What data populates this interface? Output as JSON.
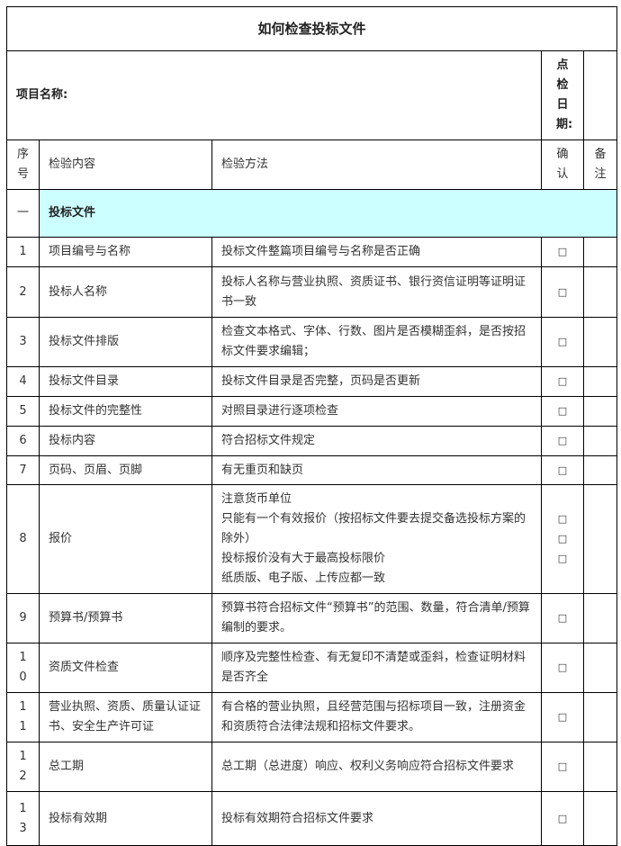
{
  "title": "如何检查投标文件",
  "project_label": "项目名称:",
  "date_label": "点检日期:",
  "headers": {
    "seq": "序号",
    "content": "检验内容",
    "method": "检验方法",
    "confirm": "确认",
    "remark": "备注"
  },
  "section": {
    "seq": "一",
    "name": "投标文件",
    "color": "#ccffff"
  },
  "checkbox_glyph": "□",
  "rows": [
    {
      "seq": "1",
      "content": "项目编号与名称",
      "method": [
        "投标文件整篇项目编号与名称是否正确"
      ],
      "checks": 1
    },
    {
      "seq": "2",
      "content": "投标人名称",
      "method": [
        "投标人名称与营业执照、资质证书、银行资信证明等证明证书一致"
      ],
      "checks": 1
    },
    {
      "seq": "3",
      "content": "投标文件排版",
      "method": [
        "检查文本格式、字体、行数、图片是否模糊歪斜，是否按招标文件要求编辑；"
      ],
      "checks": 1
    },
    {
      "seq": "4",
      "content": "投标文件目录",
      "method": [
        "投标文件目录是否完整，页码是否更新"
      ],
      "checks": 1
    },
    {
      "seq": "5",
      "content": "投标文件的完整性",
      "method": [
        "对照目录进行逐项检查"
      ],
      "checks": 1
    },
    {
      "seq": "6",
      "content": "投标内容",
      "method": [
        "符合招标文件规定"
      ],
      "checks": 1
    },
    {
      "seq": "7",
      "content": "页码、页眉、页脚",
      "method": [
        "有无重页和缺页"
      ],
      "checks": 1
    },
    {
      "seq": "8",
      "content": "报价",
      "method": [
        "注意货币单位",
        "只能有一个有效报价（按招标文件要去提交备选投标方案的除外）",
        "投标报价没有大于最高投标限价",
        "纸质版、电子版、上传应都一致"
      ],
      "checks": 3
    },
    {
      "seq": "9",
      "content": "预算书/预算书",
      "method": [
        "预算书符合招标文件“预算书”的范围、数量，符合清单/预算编制的要求。"
      ],
      "checks": 1
    },
    {
      "seq": "10",
      "content": "资质文件检查",
      "method": [
        "顺序及完整性检查、有无复印不清楚或歪斜，检查证明材料是否齐全"
      ],
      "checks": 1
    },
    {
      "seq": "11",
      "content": "营业执照、资质、质量认证证书、安全生产许可证",
      "method": [
        "有合格的营业执照，且经营范围与招标项目一致，注册资金和资质符合法律法规和招标文件要求。"
      ],
      "checks": 1
    },
    {
      "seq": "12",
      "content": "总工期",
      "method": [
        "总工期（总进度）响应、权利义务响应符合招标文件要求"
      ],
      "checks": 1
    },
    {
      "seq": "13",
      "content": "投标有效期",
      "method": [
        "投标有效期符合招标文件要求"
      ],
      "checks": 1
    }
  ]
}
